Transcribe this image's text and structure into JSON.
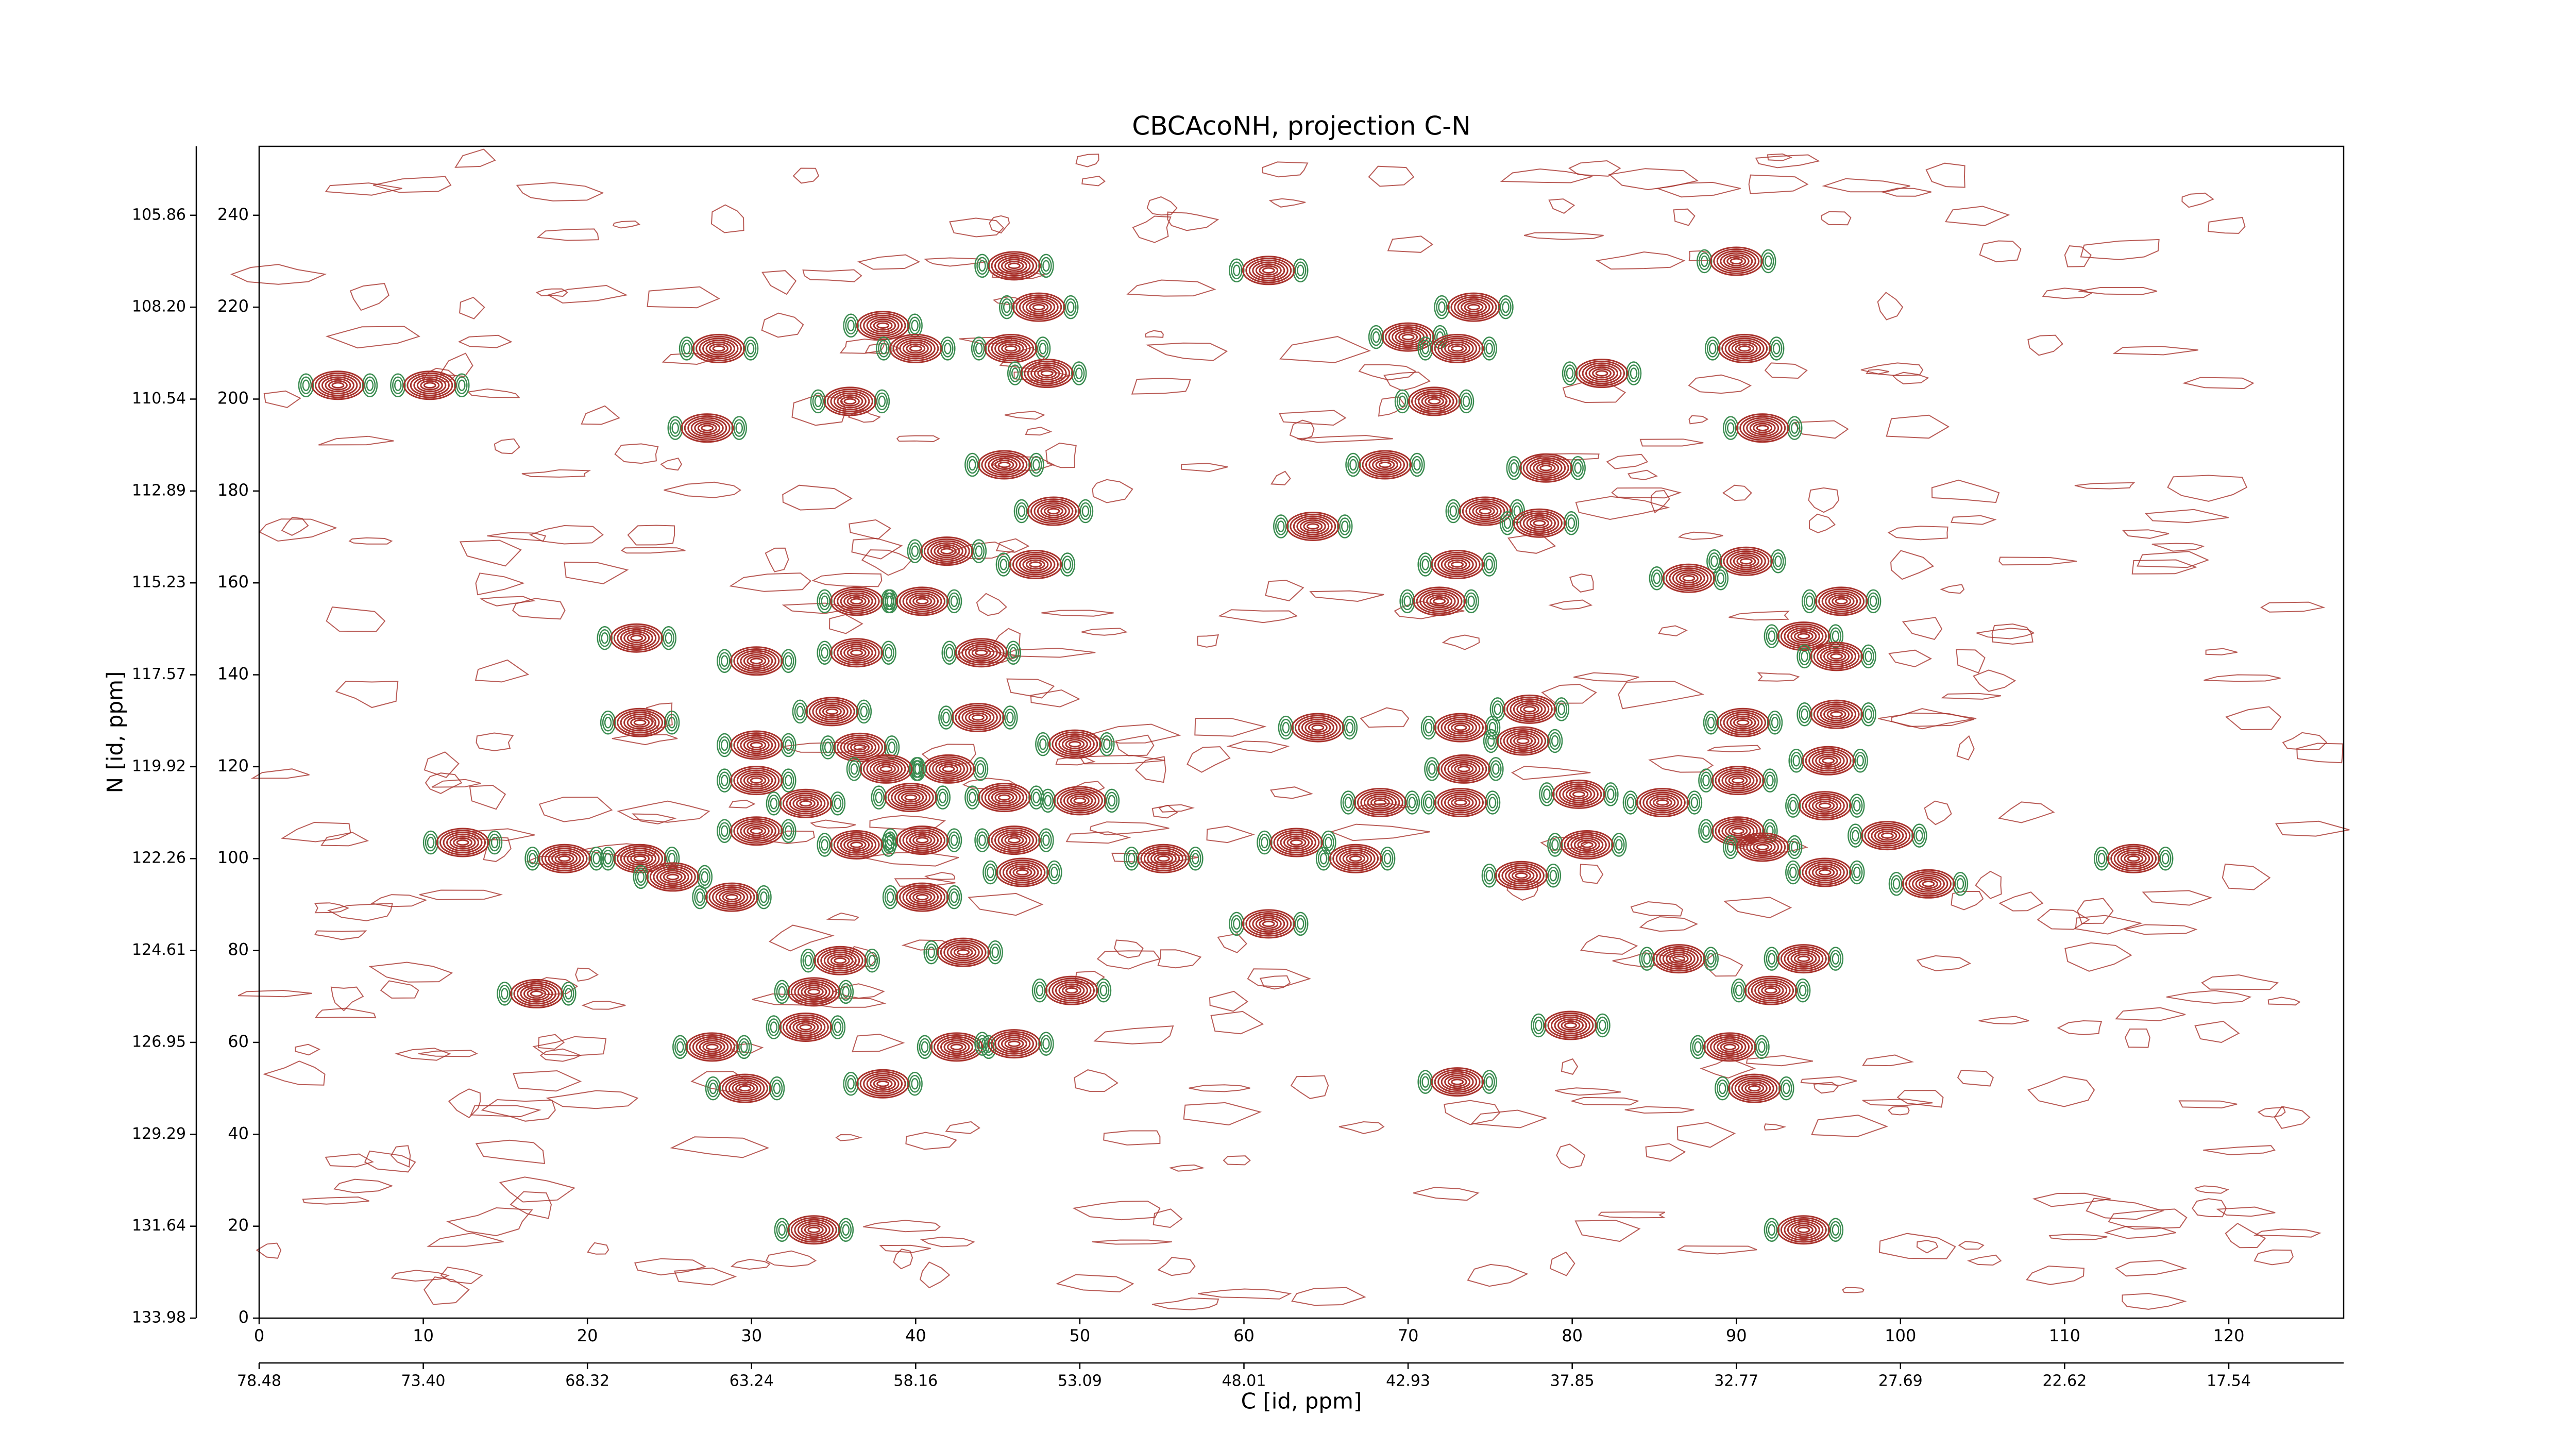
{
  "chart_data": {
    "type": "contour",
    "title": "CBCAcoNH, projection C-N",
    "xlabel": "C [id, ppm]",
    "ylabel": "N [id, ppm]",
    "xlim": [
      0,
      127
    ],
    "ylim": [
      0,
      255
    ],
    "xticks": [
      0,
      10,
      20,
      30,
      40,
      50,
      60,
      70,
      80,
      90,
      100,
      110,
      120
    ],
    "yticks": [
      0,
      20,
      40,
      60,
      80,
      100,
      120,
      140,
      160,
      180,
      200,
      220,
      240
    ],
    "x2ticks": [
      {
        "value": 0,
        "label": "78.48"
      },
      {
        "value": 10,
        "label": "73.40"
      },
      {
        "value": 20,
        "label": "68.32"
      },
      {
        "value": 30,
        "label": "63.24"
      },
      {
        "value": 40,
        "label": "58.16"
      },
      {
        "value": 50,
        "label": "53.09"
      },
      {
        "value": 60,
        "label": "48.01"
      },
      {
        "value": 70,
        "label": "42.93"
      },
      {
        "value": 80,
        "label": "37.85"
      },
      {
        "value": 90,
        "label": "32.77"
      },
      {
        "value": 100,
        "label": "27.69"
      },
      {
        "value": 110,
        "label": "22.62"
      },
      {
        "value": 120,
        "label": "17.54"
      }
    ],
    "y2ticks": [
      {
        "value": 0,
        "label": "133.98"
      },
      {
        "value": 20,
        "label": "131.64"
      },
      {
        "value": 40,
        "label": "129.29"
      },
      {
        "value": 60,
        "label": "126.95"
      },
      {
        "value": 80,
        "label": "124.61"
      },
      {
        "value": 100,
        "label": "122.26"
      },
      {
        "value": 120,
        "label": "119.92"
      },
      {
        "value": 140,
        "label": "117.57"
      },
      {
        "value": 160,
        "label": "115.23"
      },
      {
        "value": 180,
        "label": "112.89"
      },
      {
        "value": 200,
        "label": "110.54"
      },
      {
        "value": 220,
        "label": "108.20"
      },
      {
        "value": 240,
        "label": "105.86"
      }
    ],
    "positive_color": "#a8322c",
    "negative_color": "#3a8c50",
    "peaks": {
      "x": [
        46,
        61.5,
        90,
        38,
        47.5,
        74,
        28,
        40,
        45.8,
        70,
        73,
        90.5,
        48,
        81.8,
        4.8,
        10.4,
        36,
        71.6,
        27.3,
        91.6,
        45.4,
        68.6,
        78.4,
        48.4,
        64.2,
        74.7,
        78,
        41.9,
        47.3,
        73,
        90.6,
        87.1,
        36.4,
        40.4,
        71.9,
        96.4,
        23,
        94.1,
        36.4,
        44,
        30.3,
        96.1,
        34.9,
        43.8,
        23.2,
        64.5,
        73.2,
        77.4,
        90.4,
        96.1,
        30.3,
        36.6,
        49.7,
        77,
        95.6,
        42,
        38.2,
        73.4,
        30.3,
        90.1,
        33.3,
        50,
        39.7,
        45.4,
        68.3,
        73.2,
        80.4,
        85.5,
        95.4,
        30.3,
        36.4,
        40.4,
        46,
        90.1,
        12.4,
        63.2,
        80.9,
        99.2,
        18.6,
        23.2,
        55.1,
        66.8,
        91.6,
        114.2,
        25.2,
        46.5,
        76.9,
        95.4,
        101.7,
        28.8,
        40.4,
        61.5,
        42.9,
        35.4,
        86.5,
        94.1,
        16.9,
        33.8,
        49.5,
        92.1,
        79.9,
        33.3,
        27.6,
        42.5,
        46,
        89.6,
        38,
        29.6,
        73,
        91.1,
        33.8,
        94.1
      ],
      "y": [
        229,
        228,
        230,
        216,
        220,
        220,
        211,
        211,
        211,
        213.5,
        211,
        211,
        205.6,
        205.6,
        203,
        203,
        199.5,
        199.5,
        193.7,
        193.7,
        185.7,
        185.7,
        185,
        175.6,
        172.3,
        175.6,
        173,
        166.9,
        164,
        164,
        164.7,
        161,
        156,
        156,
        156,
        156,
        148,
        148.4,
        144.8,
        144.8,
        143,
        144,
        132,
        130.7,
        129.6,
        128.5,
        128.5,
        132.5,
        129.6,
        131.4,
        124.7,
        124.2,
        124.9,
        125.6,
        121.3,
        119.5,
        119.5,
        119.5,
        117,
        117,
        112,
        112.6,
        113.3,
        113.3,
        112.2,
        112.2,
        114,
        112.2,
        111.5,
        106,
        103,
        104,
        104,
        106,
        103.5,
        103.5,
        103,
        105,
        100,
        100,
        100,
        100,
        102.5,
        100,
        96,
        97,
        96.3,
        97,
        94.5,
        91.6,
        91.6,
        85.8,
        79.6,
        77.8,
        78.2,
        78.2,
        70.6,
        71,
        71.3,
        71.3,
        63.7,
        63.3,
        59,
        59,
        59.7,
        59,
        51,
        50,
        51.4,
        50,
        19.2,
        19.2
      ]
    }
  }
}
